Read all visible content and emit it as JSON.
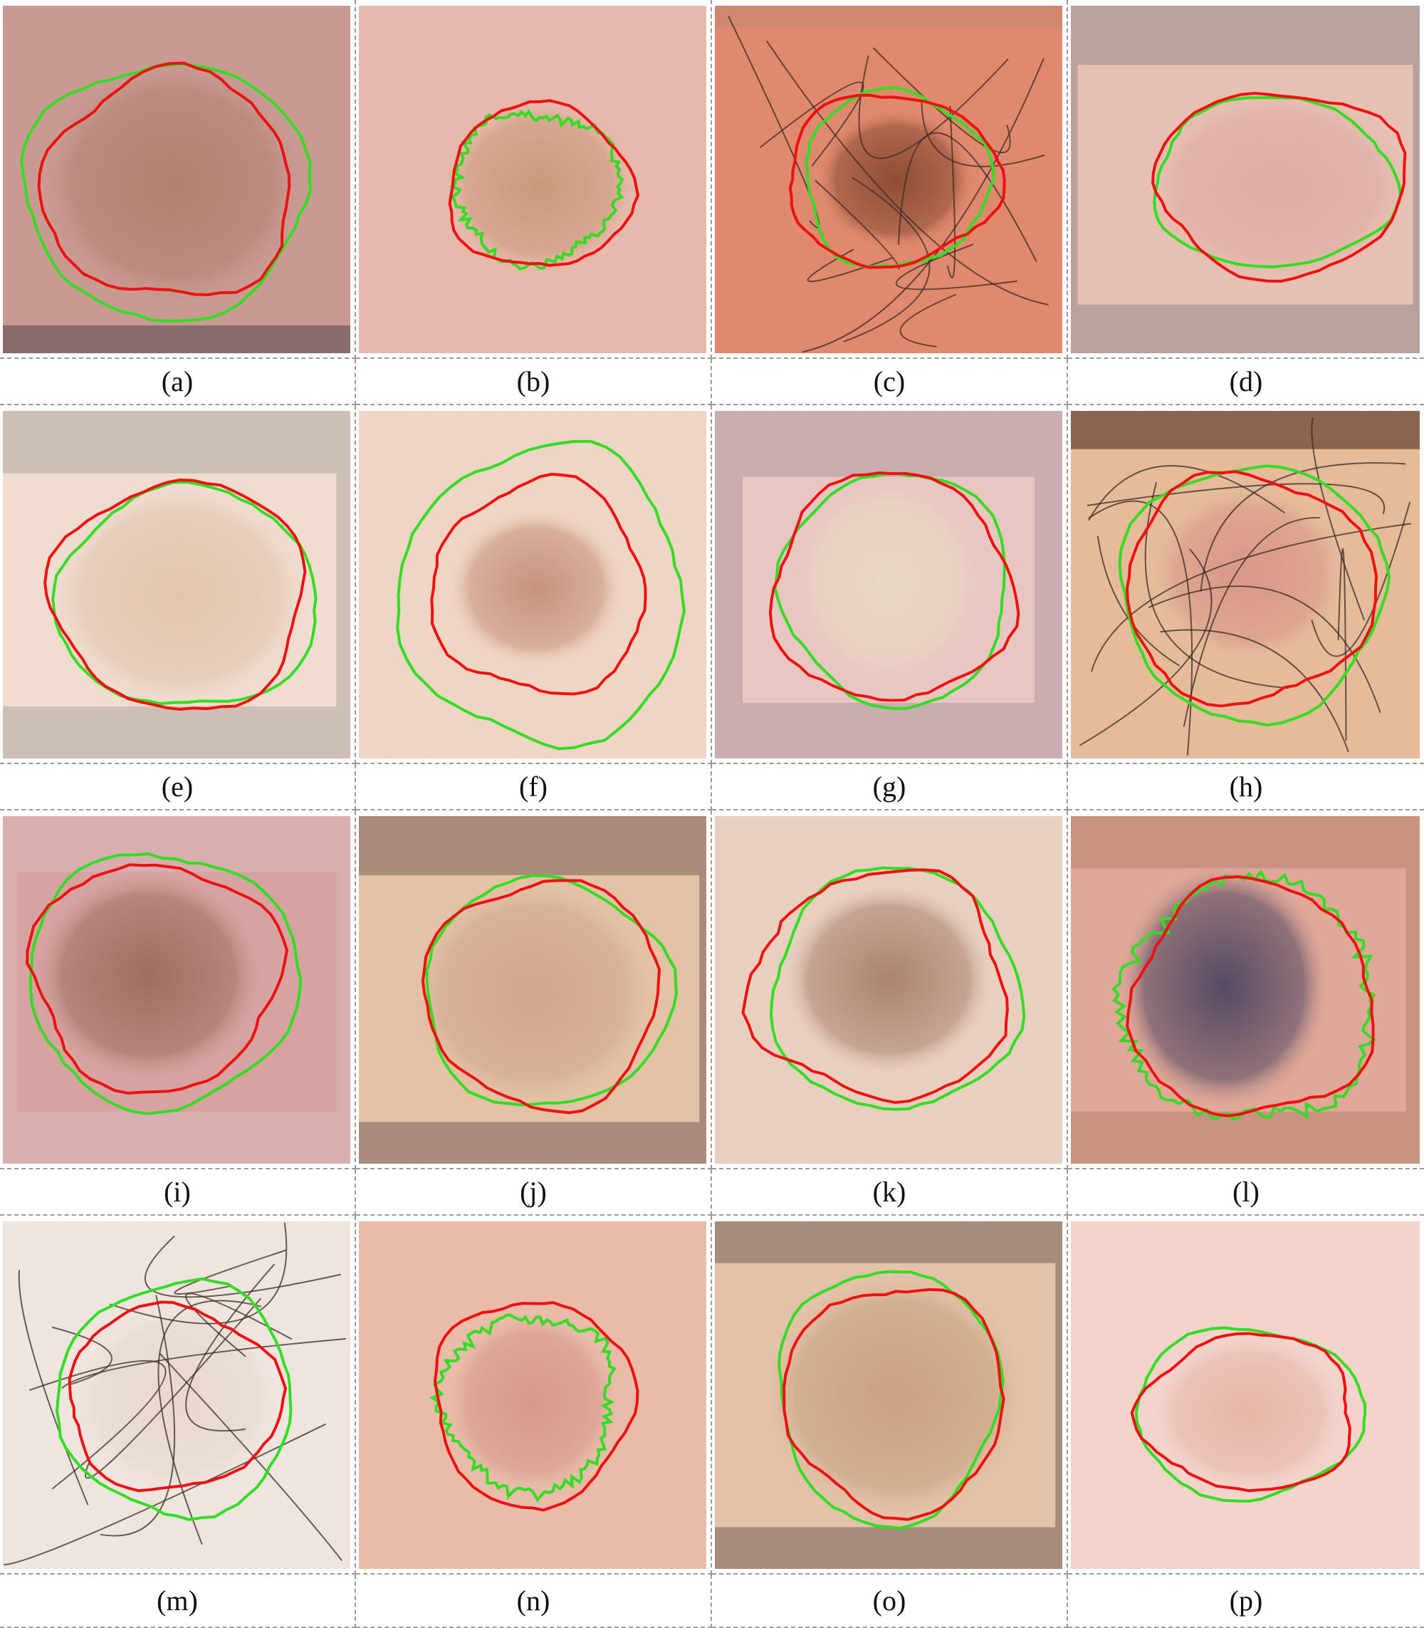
{
  "panels": [
    {
      "label": "(a)",
      "bg": "#8a6b6b",
      "skin": "#c99a92",
      "lesion": "#b07f6f",
      "hair": false
    },
    {
      "label": "(b)",
      "bg": "#e2b4a8",
      "skin": "#e6b9ac",
      "lesion": "#c99878",
      "hair": false
    },
    {
      "label": "(c)",
      "bg": "#d08770",
      "skin": "#e0896e",
      "lesion": "#8a4a32",
      "hair": true
    },
    {
      "label": "(d)",
      "bg": "#b9a29b",
      "skin": "#e6c0b2",
      "lesion": "#dfa9a0",
      "hair": false
    },
    {
      "label": "(e)",
      "bg": "#cdbfb5",
      "skin": "#f0ddd0",
      "lesion": "#e0c3aa",
      "hair": false
    },
    {
      "label": "(f)",
      "bg": "#ecd2c2",
      "skin": "#efd5c4",
      "lesion": "#c58f7c",
      "hair": false
    },
    {
      "label": "(g)",
      "bg": "#c9aeb0",
      "skin": "#e8c6c1",
      "lesion": "#e8d9c2",
      "hair": false
    },
    {
      "label": "(h)",
      "bg": "#8a6450",
      "skin": "#e5bb9a",
      "lesion": "#d89586",
      "hair": true
    },
    {
      "label": "(i)",
      "bg": "#d9aeae",
      "skin": "#d7a3a0",
      "lesion": "#9e6a5c",
      "hair": false
    },
    {
      "label": "(j)",
      "bg": "#a88c79",
      "skin": "#e3c2a5",
      "lesion": "#cfa58d",
      "hair": false
    },
    {
      "label": "(k)",
      "bg": "#d9c5b5",
      "skin": "#e8d0c0",
      "lesion": "#a8806c",
      "hair": false
    },
    {
      "label": "(l)",
      "bg": "#c99382",
      "skin": "#e0a898",
      "lesion": "#4e4560",
      "hair": false
    },
    {
      "label": "(m)",
      "bg": "#ece4de",
      "skin": "#efe5df",
      "lesion": "#e8d7ce",
      "hair": true
    },
    {
      "label": "(n)",
      "bg": "#e3b3a0",
      "skin": "#e9bcaa",
      "lesion": "#d4968c",
      "hair": false
    },
    {
      "label": "(o)",
      "bg": "#a68c7e",
      "skin": "#e2c2a8",
      "lesion": "#c79f7f",
      "hair": false
    },
    {
      "label": "(p)",
      "bg": "#f0d3cb",
      "skin": "#f2d4cb",
      "lesion": "#e6b5a5",
      "hair": false
    }
  ],
  "contour_colors": {
    "ground_truth": "#33dd22",
    "prediction": "#ee1111"
  }
}
